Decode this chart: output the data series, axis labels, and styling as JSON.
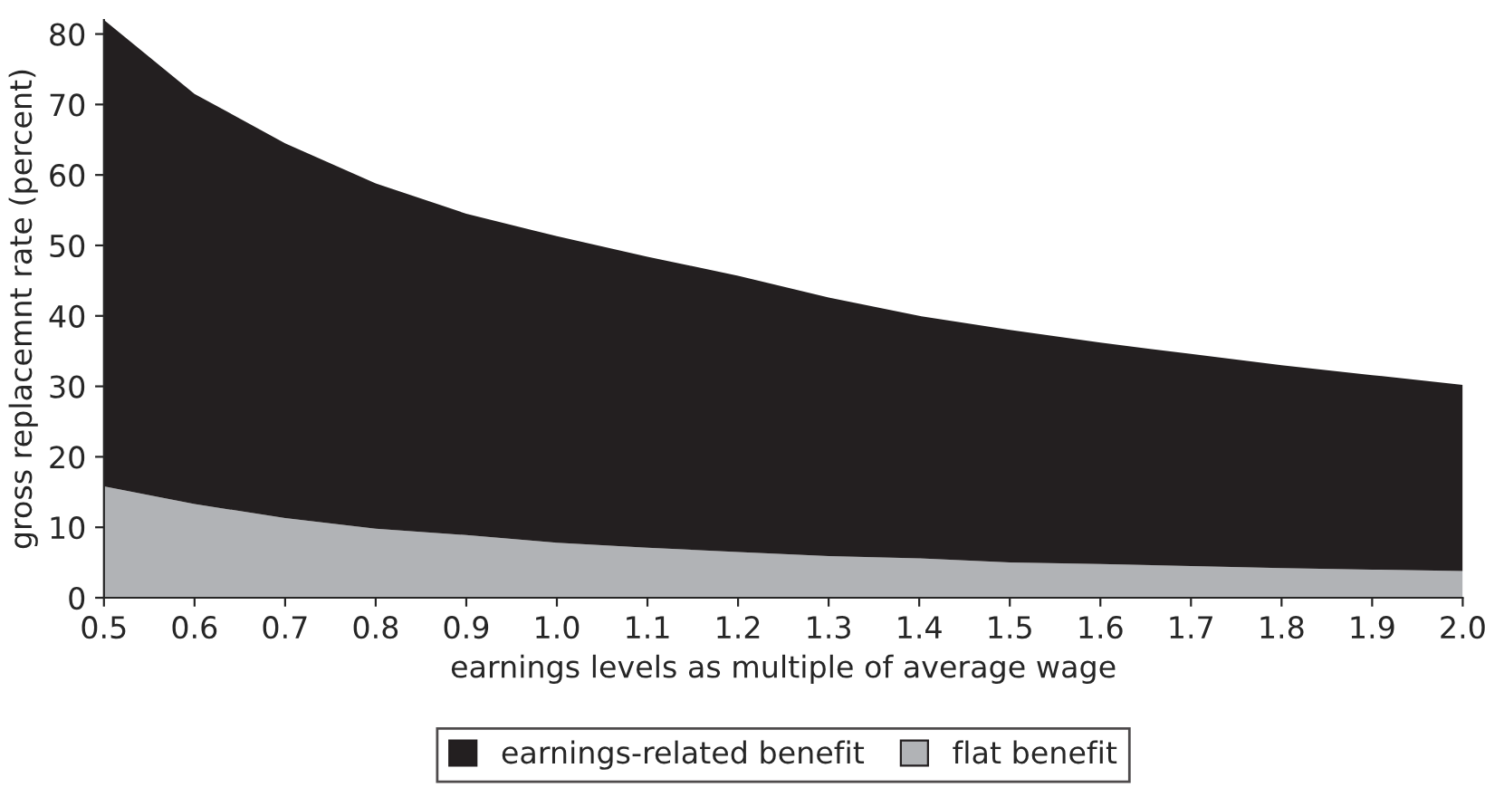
{
  "chart_data": {
    "type": "area",
    "stacked": true,
    "xlabel": "earnings levels as multiple of average wage",
    "ylabel": "gross replacemnt rate (percent)",
    "x": [
      0.5,
      0.6,
      0.7,
      0.8,
      0.9,
      1.0,
      1.1,
      1.2,
      1.3,
      1.4,
      1.5,
      1.6,
      1.7,
      1.8,
      1.9,
      2.0
    ],
    "series": [
      {
        "name": "flat benefit",
        "color": "#b1b3b6",
        "values": [
          15.8,
          13.3,
          11.3,
          9.8,
          8.9,
          7.8,
          7.1,
          6.5,
          5.9,
          5.6,
          5.0,
          4.8,
          4.5,
          4.2,
          4.0,
          3.8
        ]
      },
      {
        "name": "earnings-related benefit",
        "color": "#231f20",
        "values": [
          66.2,
          58.2,
          53.2,
          49.0,
          45.6,
          43.5,
          41.3,
          39.2,
          36.7,
          34.4,
          33.0,
          31.4,
          30.1,
          28.8,
          27.6,
          26.4
        ]
      }
    ],
    "xlim": [
      0.5,
      2.0
    ],
    "ylim": [
      0,
      82
    ],
    "xticks": [
      0.5,
      0.6,
      0.7,
      0.8,
      0.9,
      {
        "value": 1,
        "label": "1.0"
      },
      1.1,
      1.2,
      1.3,
      1.4,
      1.5,
      1.6,
      1.7,
      1.8,
      1.9,
      {
        "value": 2,
        "label": "2.0"
      }
    ],
    "yticks": [
      0,
      10,
      20,
      30,
      40,
      50,
      60,
      70,
      80
    ],
    "grid": false,
    "legend": "bottom"
  }
}
